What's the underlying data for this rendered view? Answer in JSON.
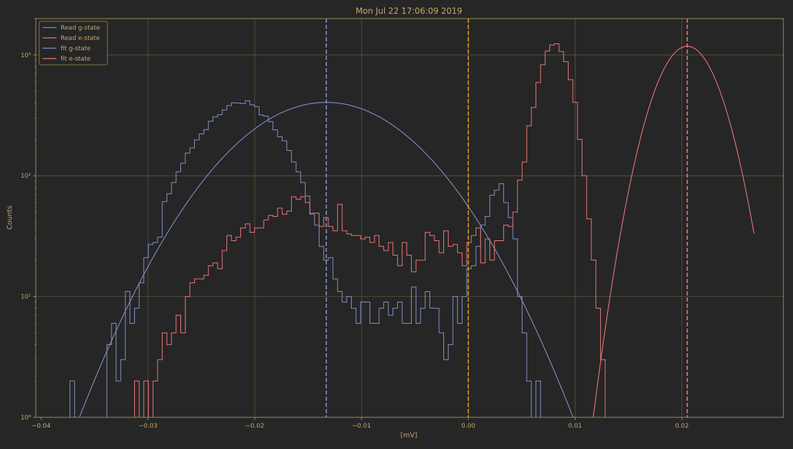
{
  "colors": {
    "background": "#262626",
    "axes": "#a08c54",
    "text": "#c8a86a",
    "grid": "#5e5738",
    "g_state": "#8494cc",
    "e_state": "#f0787a",
    "threshold": "#e0a020"
  },
  "chart_data": {
    "type": "line",
    "title": "Mon Jul 22 17:06:09 2019",
    "xlabel": "[mV]",
    "ylabel": "Counts",
    "xlim": [
      -0.0405,
      0.0295
    ],
    "ylim": [
      1,
      2000
    ],
    "yscale": "log",
    "grid": true,
    "legend_position": "top-left",
    "xticks": [
      -0.04,
      -0.03,
      -0.02,
      -0.01,
      0.0,
      0.01,
      0.02
    ],
    "xtick_labels": [
      "−0.04",
      "−0.03",
      "−0.02",
      "−0.01",
      "0.00",
      "0.01",
      "0.02"
    ],
    "yticks": [
      1,
      10,
      100,
      1000
    ],
    "ytick_labels": [
      "10⁰",
      "10¹",
      "10²",
      "10³"
    ],
    "hist_bins": {
      "start": -0.0373,
      "width": 0.000432
    },
    "series": [
      {
        "name": "Read g-state",
        "kind": "histogram",
        "color_key": "g_state",
        "counts": [
          2,
          0,
          0,
          0,
          0,
          0,
          0,
          0,
          4,
          6,
          2,
          3,
          11,
          6,
          8,
          13,
          21,
          27,
          28,
          31,
          61,
          71,
          88,
          108,
          127,
          154,
          170,
          198,
          222,
          241,
          283,
          307,
          320,
          350,
          381,
          402,
          400,
          396,
          418,
          387,
          373,
          319,
          312,
          280,
          240,
          210,
          195,
          162,
          130,
          108,
          88,
          68,
          48,
          39,
          26,
          20,
          21,
          14,
          11,
          9,
          10,
          8,
          6,
          9,
          9,
          6,
          6,
          8,
          9,
          7,
          8,
          9,
          6,
          6,
          12,
          6,
          8,
          11,
          8,
          8,
          5,
          3,
          4,
          10,
          6,
          10,
          17,
          18,
          26,
          39,
          46,
          69,
          76,
          86,
          60,
          45,
          30,
          10,
          5,
          2,
          1,
          2
        ]
      },
      {
        "name": "Read e-state",
        "kind": "histogram",
        "color_key": "e_state",
        "counts": [
          0,
          0,
          0,
          0,
          0,
          0,
          0,
          0,
          0,
          0,
          0,
          0,
          0,
          0,
          2,
          1,
          2,
          1,
          2,
          3,
          5,
          4,
          5,
          7,
          5,
          10,
          13,
          14,
          14,
          15,
          18,
          19,
          17,
          24,
          32,
          29,
          31,
          37,
          40,
          34,
          37,
          37,
          43,
          47,
          46,
          54,
          48,
          51,
          67,
          64,
          67,
          60,
          49,
          49,
          38,
          45,
          38,
          35,
          58,
          35,
          33,
          32,
          32,
          30,
          31,
          28,
          32,
          26,
          24,
          28,
          22,
          18,
          28,
          22,
          16,
          20,
          20,
          34,
          32,
          29,
          23,
          35,
          26,
          27,
          23,
          18,
          28,
          32,
          37,
          19,
          30,
          20,
          29,
          29,
          39,
          38,
          50,
          92,
          130,
          259,
          367,
          591,
          830,
          1078,
          1209,
          1238,
          1068,
          879,
          624,
          405,
          200,
          100,
          44,
          20,
          8,
          3,
          1
        ]
      },
      {
        "name": "fit g-state",
        "kind": "fit",
        "color_key": "g_state",
        "mu": -0.0133,
        "sigma": 0.00667,
        "amplitude": 405
      },
      {
        "name": "fit e-state",
        "kind": "fit",
        "color_key": "e_state",
        "mu": 0.0205,
        "sigma": 0.00234,
        "amplitude": 1180
      }
    ],
    "vlines": [
      {
        "x": -0.0133,
        "color_key": "g_state"
      },
      {
        "x": 0.0,
        "color_key": "threshold"
      },
      {
        "x": 0.0205,
        "color_key": "e_state"
      }
    ]
  }
}
